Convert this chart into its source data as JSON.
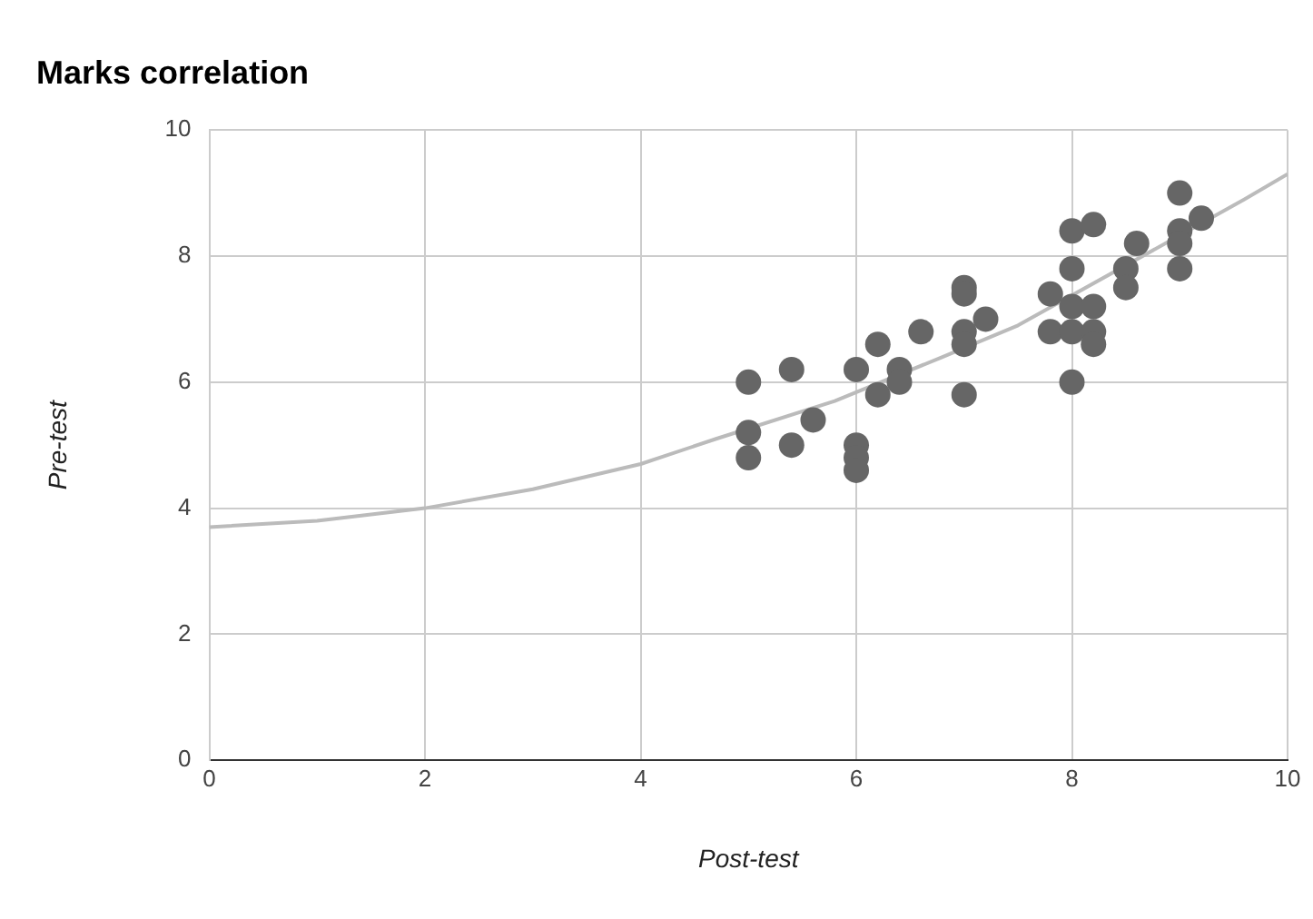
{
  "chart_data": {
    "type": "scatter",
    "title": "Marks correlation",
    "xlabel": "Post-test",
    "ylabel": "Pre-test",
    "xlim": [
      0,
      10
    ],
    "xticks": [
      0,
      2,
      4,
      6,
      8,
      10
    ],
    "ylim": [
      0,
      10
    ],
    "yticks": [
      0,
      2,
      4,
      6,
      8,
      10
    ],
    "grid": true,
    "legend": false,
    "marker": "circle",
    "series": [
      {
        "type": "scatter",
        "color": "#666666",
        "x": [
          5,
          5,
          5,
          5.4,
          5.4,
          5.6,
          6,
          6,
          6,
          6,
          6.2,
          6.2,
          6.4,
          6.4,
          6.6,
          7,
          7,
          7,
          7,
          7,
          7.2,
          7.8,
          7.8,
          8,
          8,
          8,
          8,
          8,
          8.2,
          8.2,
          8.2,
          8.2,
          8.5,
          8.5,
          8.6,
          9,
          9,
          9,
          9,
          9.2
        ],
        "values": [
          6.0,
          5.2,
          4.8,
          6.2,
          5.0,
          5.4,
          6.2,
          5.0,
          4.8,
          4.6,
          6.6,
          5.8,
          6.2,
          6.0,
          6.8,
          7.5,
          7.4,
          6.8,
          6.6,
          5.8,
          7.0,
          7.4,
          6.8,
          8.4,
          7.8,
          7.2,
          6.8,
          6.0,
          8.5,
          7.2,
          6.8,
          6.6,
          7.8,
          7.5,
          8.2,
          9.0,
          8.4,
          8.2,
          7.8,
          8.6
        ]
      },
      {
        "type": "line",
        "color": "#bbbbbb",
        "marker": "none",
        "x": [
          0,
          1,
          2,
          3,
          4,
          4.7,
          5.8,
          6.8,
          7.5,
          9.6,
          10
        ],
        "values": [
          3.7,
          3.8,
          4.0,
          4.3,
          4.7,
          5.1,
          5.7,
          6.4,
          6.9,
          8.9,
          9.3
        ]
      }
    ]
  }
}
